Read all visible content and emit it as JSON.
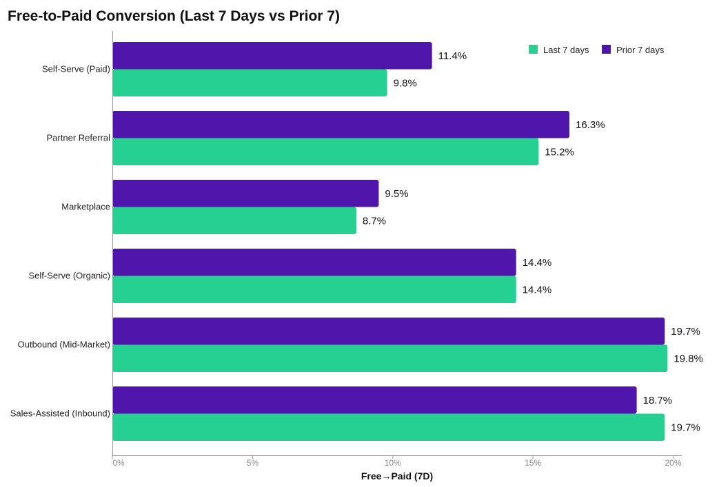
{
  "chart_data": {
    "type": "bar",
    "orientation": "horizontal",
    "title": "Free-to-Paid Conversion (Last 7 Days vs Prior 7)",
    "xlabel": "Free→Paid (7D)",
    "ylabel": "",
    "xlim": [
      0,
      20
    ],
    "x_ticks": [
      "0%",
      "5%",
      "10%",
      "15%",
      "20%"
    ],
    "grid": false,
    "legend_position": "top-right",
    "categories": [
      "Self-Serve (Paid)",
      "Partner Referral",
      "Marketplace",
      "Self-Serve (Organic)",
      "Outbound (Mid-Market)",
      "Sales-Assisted (Inbound)"
    ],
    "series": [
      {
        "name": "Last 7 days",
        "color": "#26d093",
        "values": [
          9.8,
          15.2,
          8.7,
          14.4,
          19.8,
          19.7
        ],
        "labels": [
          "9.8%",
          "15.2%",
          "8.7%",
          "14.4%",
          "19.8%",
          "19.7%"
        ]
      },
      {
        "name": "Prior 7 days",
        "color": "#5016ab",
        "values": [
          11.4,
          16.3,
          9.5,
          14.4,
          19.7,
          18.7
        ],
        "labels": [
          "11.4%",
          "16.3%",
          "9.5%",
          "14.4%",
          "19.7%",
          "18.7%"
        ]
      }
    ]
  }
}
